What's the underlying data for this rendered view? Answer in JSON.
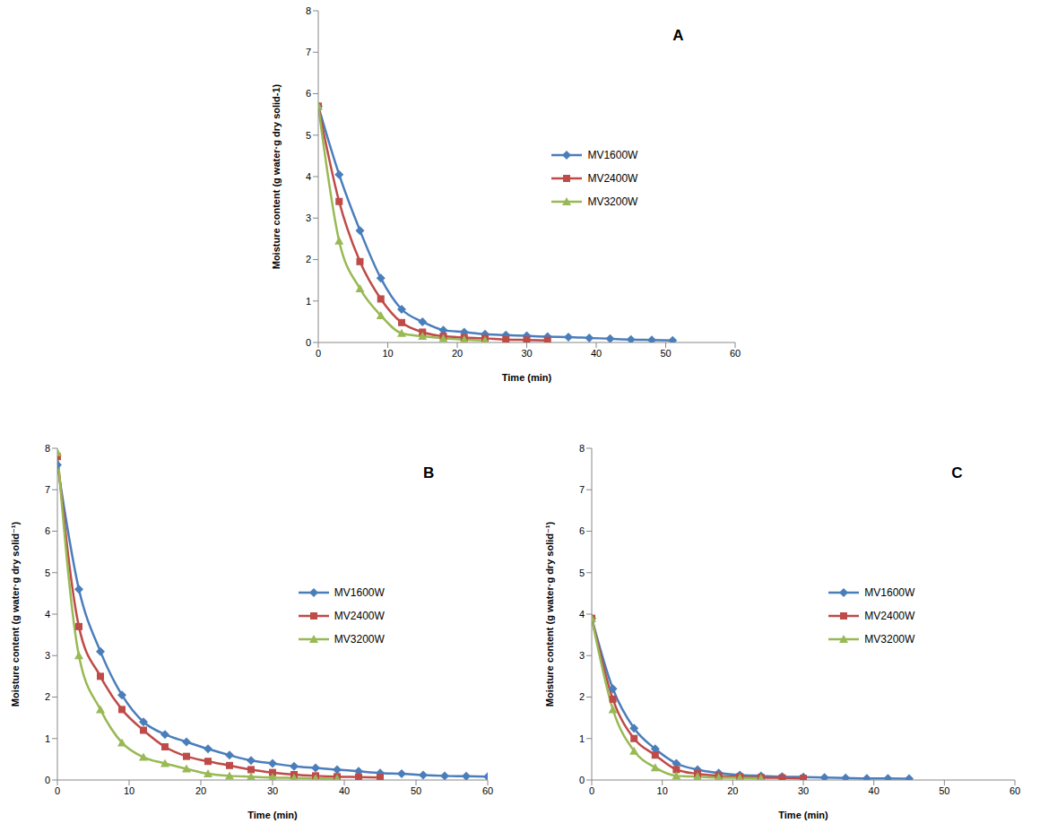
{
  "chart_data": [
    {
      "type": "line",
      "panel": "A",
      "x_label": "Time (min)",
      "y_label": "Moisture content (g water·g dry solid-1)",
      "xlim": [
        0,
        60
      ],
      "xticks": [
        0,
        10,
        20,
        30,
        40,
        50,
        60
      ],
      "ylim": [
        0,
        8
      ],
      "yticks": [
        0,
        1,
        2,
        3,
        4,
        5,
        6,
        7,
        8
      ],
      "grid": false,
      "legend": "right",
      "series": [
        {
          "name": "MV1600W",
          "color": "#4a7ebb",
          "marker": "diamond",
          "x": [
            0,
            3,
            6,
            9,
            12,
            15,
            18,
            21,
            24,
            27,
            30,
            33,
            36,
            39,
            42,
            45,
            48,
            51
          ],
          "values": [
            5.7,
            4.05,
            2.7,
            1.55,
            0.8,
            0.5,
            0.3,
            0.25,
            0.2,
            0.18,
            0.16,
            0.14,
            0.13,
            0.11,
            0.09,
            0.07,
            0.06,
            0.05
          ]
        },
        {
          "name": "MV2400W",
          "color": "#be4b48",
          "marker": "square",
          "x": [
            0,
            3,
            6,
            9,
            12,
            15,
            18,
            21,
            24,
            27,
            30,
            33
          ],
          "values": [
            5.7,
            3.4,
            1.95,
            1.05,
            0.48,
            0.25,
            0.15,
            0.12,
            0.1,
            0.07,
            0.06,
            0.05
          ]
        },
        {
          "name": "MV3200W",
          "color": "#98b954",
          "marker": "triangle",
          "x": [
            0,
            3,
            6,
            9,
            12,
            15,
            18,
            21,
            24
          ],
          "values": [
            5.7,
            2.45,
            1.3,
            0.65,
            0.22,
            0.15,
            0.1,
            0.07,
            0.05
          ]
        }
      ]
    },
    {
      "type": "line",
      "panel": "B",
      "x_label": "Time (min)",
      "y_label": "Moisture content (g water·g dry solid⁻¹)",
      "xlim": [
        0,
        60
      ],
      "xticks": [
        0,
        10,
        20,
        30,
        40,
        50,
        60
      ],
      "ylim": [
        0,
        8
      ],
      "yticks": [
        0,
        1,
        2,
        3,
        4,
        5,
        6,
        7,
        8
      ],
      "grid": false,
      "legend": "right",
      "series": [
        {
          "name": "MV1600W",
          "color": "#4a7ebb",
          "marker": "diamond",
          "x": [
            0,
            3,
            6,
            9,
            12,
            15,
            18,
            21,
            24,
            27,
            30,
            33,
            36,
            39,
            42,
            45,
            48,
            51,
            54,
            57,
            60
          ],
          "values": [
            7.6,
            4.6,
            3.1,
            2.05,
            1.4,
            1.1,
            0.92,
            0.75,
            0.6,
            0.47,
            0.4,
            0.33,
            0.29,
            0.25,
            0.21,
            0.17,
            0.15,
            0.12,
            0.1,
            0.09,
            0.08
          ]
        },
        {
          "name": "MV2400W",
          "color": "#be4b48",
          "marker": "square",
          "x": [
            0,
            3,
            6,
            9,
            12,
            15,
            18,
            21,
            24,
            27,
            30,
            33,
            36,
            39,
            42,
            45
          ],
          "values": [
            7.8,
            3.7,
            2.5,
            1.7,
            1.2,
            0.8,
            0.57,
            0.45,
            0.35,
            0.25,
            0.18,
            0.13,
            0.1,
            0.08,
            0.07,
            0.06
          ]
        },
        {
          "name": "MV3200W",
          "color": "#98b954",
          "marker": "triangle",
          "x": [
            0,
            3,
            6,
            9,
            12,
            15,
            18,
            21,
            24,
            27,
            30,
            33,
            36,
            39
          ],
          "values": [
            7.9,
            3.0,
            1.7,
            0.9,
            0.55,
            0.4,
            0.27,
            0.15,
            0.1,
            0.08,
            0.06,
            0.05,
            0.04,
            0.03
          ]
        }
      ]
    },
    {
      "type": "line",
      "panel": "C",
      "x_label": "Time (min)",
      "y_label": "Moisture content (g water·g dry solid⁻¹)",
      "xlim": [
        0,
        60
      ],
      "xticks": [
        0,
        10,
        20,
        30,
        40,
        50,
        60
      ],
      "ylim": [
        0,
        8
      ],
      "yticks": [
        0,
        1,
        2,
        3,
        4,
        5,
        6,
        7,
        8
      ],
      "grid": false,
      "legend": "right",
      "series": [
        {
          "name": "MV1600W",
          "color": "#4a7ebb",
          "marker": "diamond",
          "x": [
            0,
            3,
            6,
            9,
            12,
            15,
            18,
            21,
            24,
            27,
            30,
            33,
            36,
            39,
            42,
            45
          ],
          "values": [
            3.9,
            2.2,
            1.25,
            0.75,
            0.4,
            0.25,
            0.17,
            0.12,
            0.1,
            0.08,
            0.07,
            0.06,
            0.05,
            0.04,
            0.04,
            0.03
          ]
        },
        {
          "name": "MV2400W",
          "color": "#be4b48",
          "marker": "square",
          "x": [
            0,
            3,
            6,
            9,
            12,
            15,
            18,
            21,
            24,
            27,
            30
          ],
          "values": [
            3.9,
            1.95,
            1.0,
            0.6,
            0.25,
            0.15,
            0.1,
            0.08,
            0.06,
            0.05,
            0.04
          ]
        },
        {
          "name": "MV3200W",
          "color": "#98b954",
          "marker": "triangle",
          "x": [
            0,
            3,
            6,
            9,
            12,
            15,
            18,
            21,
            24
          ],
          "values": [
            3.9,
            1.7,
            0.7,
            0.3,
            0.1,
            0.08,
            0.06,
            0.05,
            0.04
          ]
        }
      ]
    }
  ]
}
